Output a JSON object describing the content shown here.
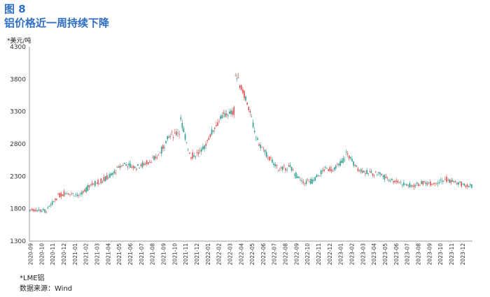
{
  "figure": {
    "label": "图 8",
    "title": "铝价格近一周持续下降",
    "unit_label": "*美元/吨",
    "legend_note": "*LME铝",
    "source": "数据来源：Wind"
  },
  "colors": {
    "up": "#e05050",
    "down": "#2a9d8f",
    "axis": "#999999",
    "title": "#2f6fc4"
  },
  "chart_data": {
    "type": "candlestick",
    "title": "铝价格近一周持续下降",
    "ylabel": "*美元/吨",
    "ylim": [
      1300,
      4300
    ],
    "yticks": [
      1300,
      1800,
      2300,
      2800,
      3300,
      3800,
      4300
    ],
    "grid": false,
    "x_labels": [
      "2020-09",
      "2020-10",
      "2020-11",
      "2020-12",
      "2021-01",
      "2021-02",
      "2021-03",
      "2021-04",
      "2021-05",
      "2021-06",
      "2021-07",
      "2021-08",
      "2021-09",
      "2021-10",
      "2021-11",
      "2021-12",
      "2022-01",
      "2022-02",
      "2022-03",
      "2022-04",
      "2022-05",
      "2022-06",
      "2022-07",
      "2022-08",
      "2022-09",
      "2022-10",
      "2022-11",
      "2022-12",
      "2023-01",
      "2023-02",
      "2023-03",
      "2023-04",
      "2023-05",
      "2023-06",
      "2023-07",
      "2023-08",
      "2023-09",
      "2023-10",
      "2023-11",
      "2023-12"
    ],
    "series": [
      {
        "dates": [
          "2020-09",
          "2020-10",
          "2020-11",
          "2020-12",
          "2021-01",
          "2021-02",
          "2021-03",
          "2021-04",
          "2021-05",
          "2021-06",
          "2021-07",
          "2021-08",
          "2021-09",
          "2021-10",
          "2021-11",
          "2021-12",
          "2022-01",
          "2022-02",
          "2022-03",
          "2022-04",
          "2022-05",
          "2022-06",
          "2022-07",
          "2022-08",
          "2022-09",
          "2022-10",
          "2022-11",
          "2022-12",
          "2023-01",
          "2023-02",
          "2023-03",
          "2023-04",
          "2023-05",
          "2023-06",
          "2023-07",
          "2023-08",
          "2023-09",
          "2023-10",
          "2023-11",
          "2023-12"
        ],
        "close": [
          1780,
          1770,
          1990,
          2050,
          2000,
          2180,
          2230,
          2350,
          2500,
          2430,
          2510,
          2600,
          2900,
          3000,
          2600,
          2680,
          3020,
          3250,
          3300,
          3500,
          2850,
          2600,
          2400,
          2450,
          2200,
          2230,
          2400,
          2420,
          2600,
          2430,
          2350,
          2350,
          2250,
          2200,
          2150,
          2200,
          2200,
          2250,
          2200,
          2150
        ]
      }
    ],
    "peaks": [
      {
        "date": "2021-10",
        "value": 3240
      },
      {
        "date": "2022-03",
        "value": 3880
      },
      {
        "date": "2023-01",
        "value": 2680
      }
    ]
  }
}
